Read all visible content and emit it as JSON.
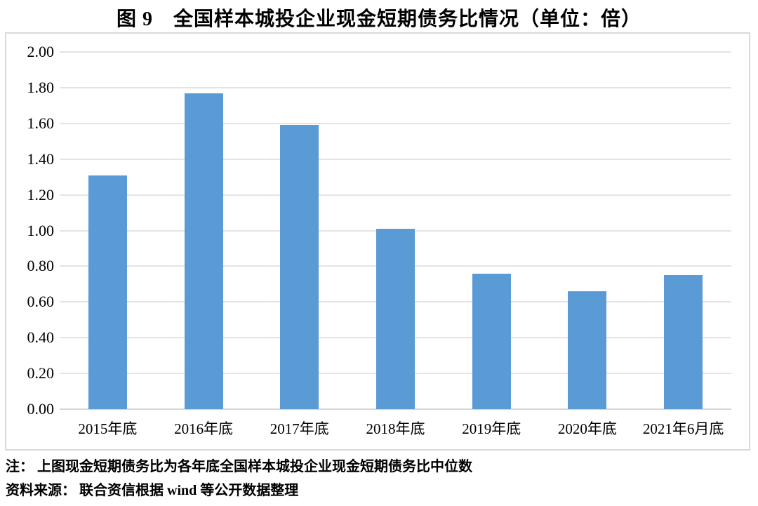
{
  "title": "图 9　全国样本城投企业现金短期债务比情况（单位：倍）",
  "chart_data": {
    "type": "bar",
    "title": "图 9　全国样本城投企业现金短期债务比情况（单位：倍）",
    "categories": [
      "2015年底",
      "2016年底",
      "2017年底",
      "2018年底",
      "2019年底",
      "2020年底",
      "2021年6月底"
    ],
    "values": [
      1.31,
      1.77,
      1.59,
      1.01,
      0.76,
      0.66,
      0.75
    ],
    "unit": "倍",
    "xlabel": "",
    "ylabel": "",
    "ylim": [
      0.0,
      2.0
    ],
    "grid": true,
    "legend": "none",
    "bar_color": "#5B9BD5",
    "yticks": [
      {
        "value": 0.0,
        "label": "0.00"
      },
      {
        "value": 0.2,
        "label": "0.20"
      },
      {
        "value": 0.4,
        "label": "0.40"
      },
      {
        "value": 0.6,
        "label": "0.60"
      },
      {
        "value": 0.8,
        "label": "0.80"
      },
      {
        "value": 1.0,
        "label": "1.00"
      },
      {
        "value": 1.2,
        "label": "1.20"
      },
      {
        "value": 1.4,
        "label": "1.40"
      },
      {
        "value": 1.6,
        "label": "1.60"
      },
      {
        "value": 1.8,
        "label": "1.80"
      },
      {
        "value": 2.0,
        "label": "2.00"
      }
    ]
  },
  "notes": {
    "line1": "注： 上图现金短期债务比为各年底全国样本城投企业现金短期债务比中位数",
    "line2": "资料来源： 联合资信根据 wind 等公开数据整理"
  },
  "colors": {
    "bar": "#5B9BD5",
    "gridline": "#E4E4E4",
    "frame_border": "#D9D9D9",
    "text": "#000000",
    "background": "#FFFFFF"
  }
}
